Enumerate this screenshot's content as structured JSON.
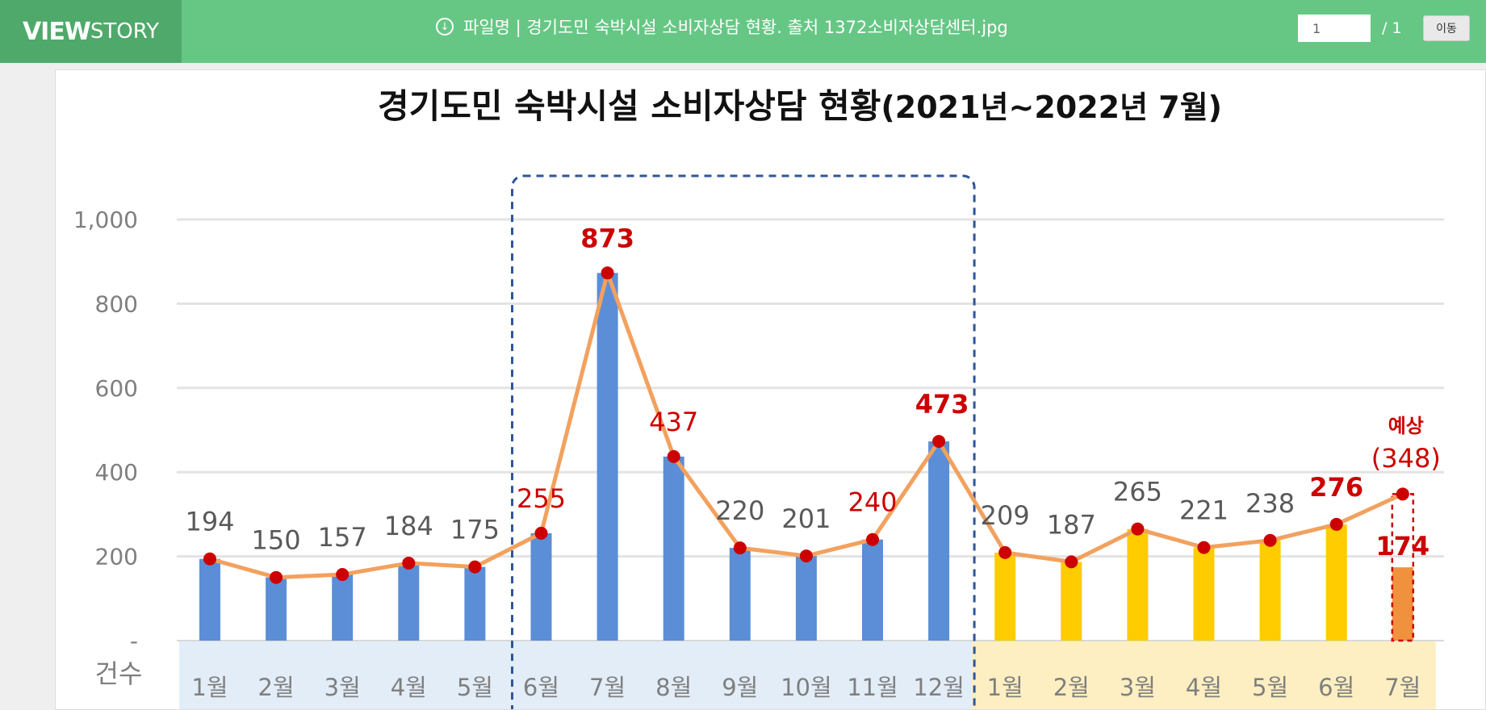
{
  "header": {
    "logo_bold": "VIEW",
    "logo_light": "STORY",
    "file_label": "파일명 | 경기도민 숙박시설 소비자상담 현황. 출처 1372소비자상담센터.jpg",
    "download_icon": "download-icon",
    "page_input": "1",
    "page_total": "/ 1",
    "go_button": "이동"
  },
  "chart_data": {
    "type": "bar",
    "title": "경기도민 숙박시설 소비자상담 현황",
    "title_suffix": "(2021년~2022년 7월)",
    "ylabel": "건수",
    "ylim": [
      0,
      1000
    ],
    "yticks": [
      "-",
      "200",
      "400",
      "600",
      "800",
      "1,000"
    ],
    "categories": [
      "1월",
      "2월",
      "3월",
      "4월",
      "5월",
      "6월",
      "7월",
      "8월",
      "9월",
      "10월",
      "11월",
      "12월",
      "1월",
      "2월",
      "3월",
      "4월",
      "5월",
      "6월",
      "7월"
    ],
    "values": [
      194,
      150,
      157,
      184,
      175,
      255,
      873,
      437,
      220,
      201,
      240,
      473,
      209,
      187,
      265,
      221,
      238,
      276,
      174
    ],
    "line_values": [
      194,
      150,
      157,
      184,
      175,
      255,
      873,
      437,
      220,
      201,
      240,
      473,
      209,
      187,
      265,
      221,
      238,
      276,
      348
    ],
    "value_labels": [
      "194",
      "150",
      "157",
      "184",
      "175",
      "255",
      "873",
      "437",
      "220",
      "201",
      "240",
      "473",
      "209",
      "187",
      "265",
      "221",
      "238",
      "276",
      "174"
    ],
    "forecast_label": "예상",
    "forecast_value": "(348)",
    "colors": {
      "bar_2021": "#5b8ed6",
      "bar_2022": "#ffcc00",
      "bar_last": "#f0913e",
      "line": "#f2a15e",
      "marker": "#cc0000",
      "highlight_text": "#cc0000",
      "normal_text": "#595959",
      "band_2021": "#e3edf8",
      "band_2022": "#fdefc2",
      "dashed_box": "#2f5597"
    },
    "grid": true
  }
}
